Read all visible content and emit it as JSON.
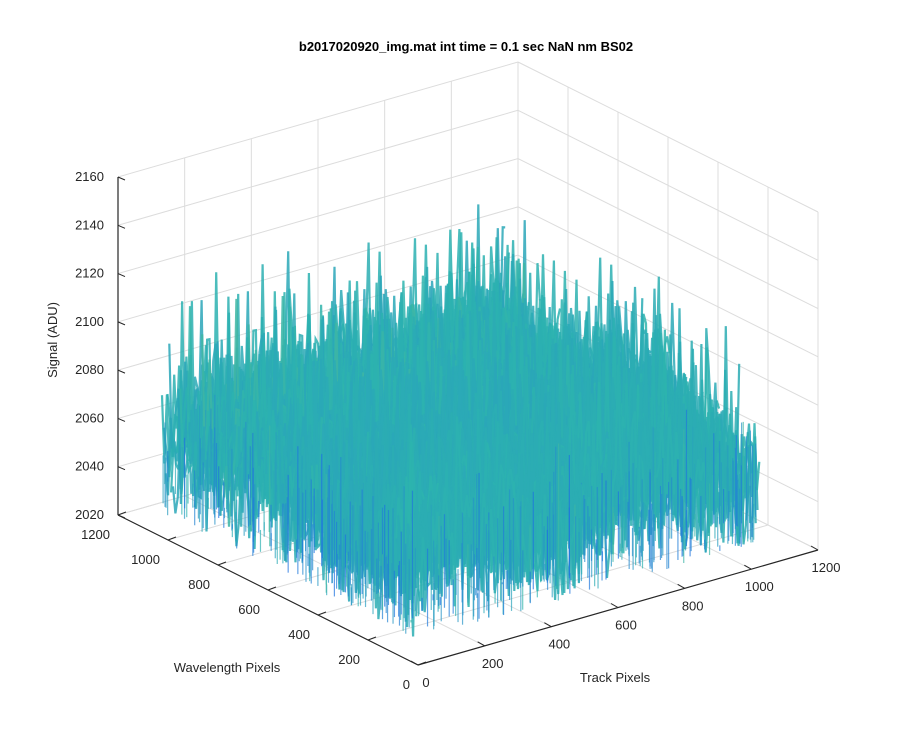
{
  "chart_data": {
    "type": "surface3d",
    "title": "b2017020920_img.mat int time = 0.1 sec  NaN nm BS02",
    "xlabel": "Track Pixels",
    "ylabel": "Wavelength Pixels",
    "zlabel": "Signal (ADU)",
    "xlim": [
      0,
      1200
    ],
    "ylim": [
      0,
      1200
    ],
    "zlim": [
      2020,
      2160
    ],
    "x_ticks": [
      "0",
      "200",
      "400",
      "600",
      "800",
      "1000",
      "1200"
    ],
    "y_ticks": [
      "0",
      "200",
      "400",
      "600",
      "800",
      "1000",
      "1200"
    ],
    "z_ticks": [
      "2020",
      "2040",
      "2060",
      "2080",
      "2100",
      "2120",
      "2140",
      "2160"
    ],
    "surface_extent": {
      "x": [
        0,
        1024
      ],
      "y": [
        0,
        1024
      ]
    },
    "signal_typical_range": [
      2030,
      2150
    ],
    "signal_mean": 2065,
    "colormap": "parula",
    "grid": true,
    "colors": {
      "low": "#1F73E0",
      "mid": "#2DB4AE",
      "high": "#E3C73A",
      "axis": "#262626",
      "grid": "#DCDCDC"
    }
  }
}
